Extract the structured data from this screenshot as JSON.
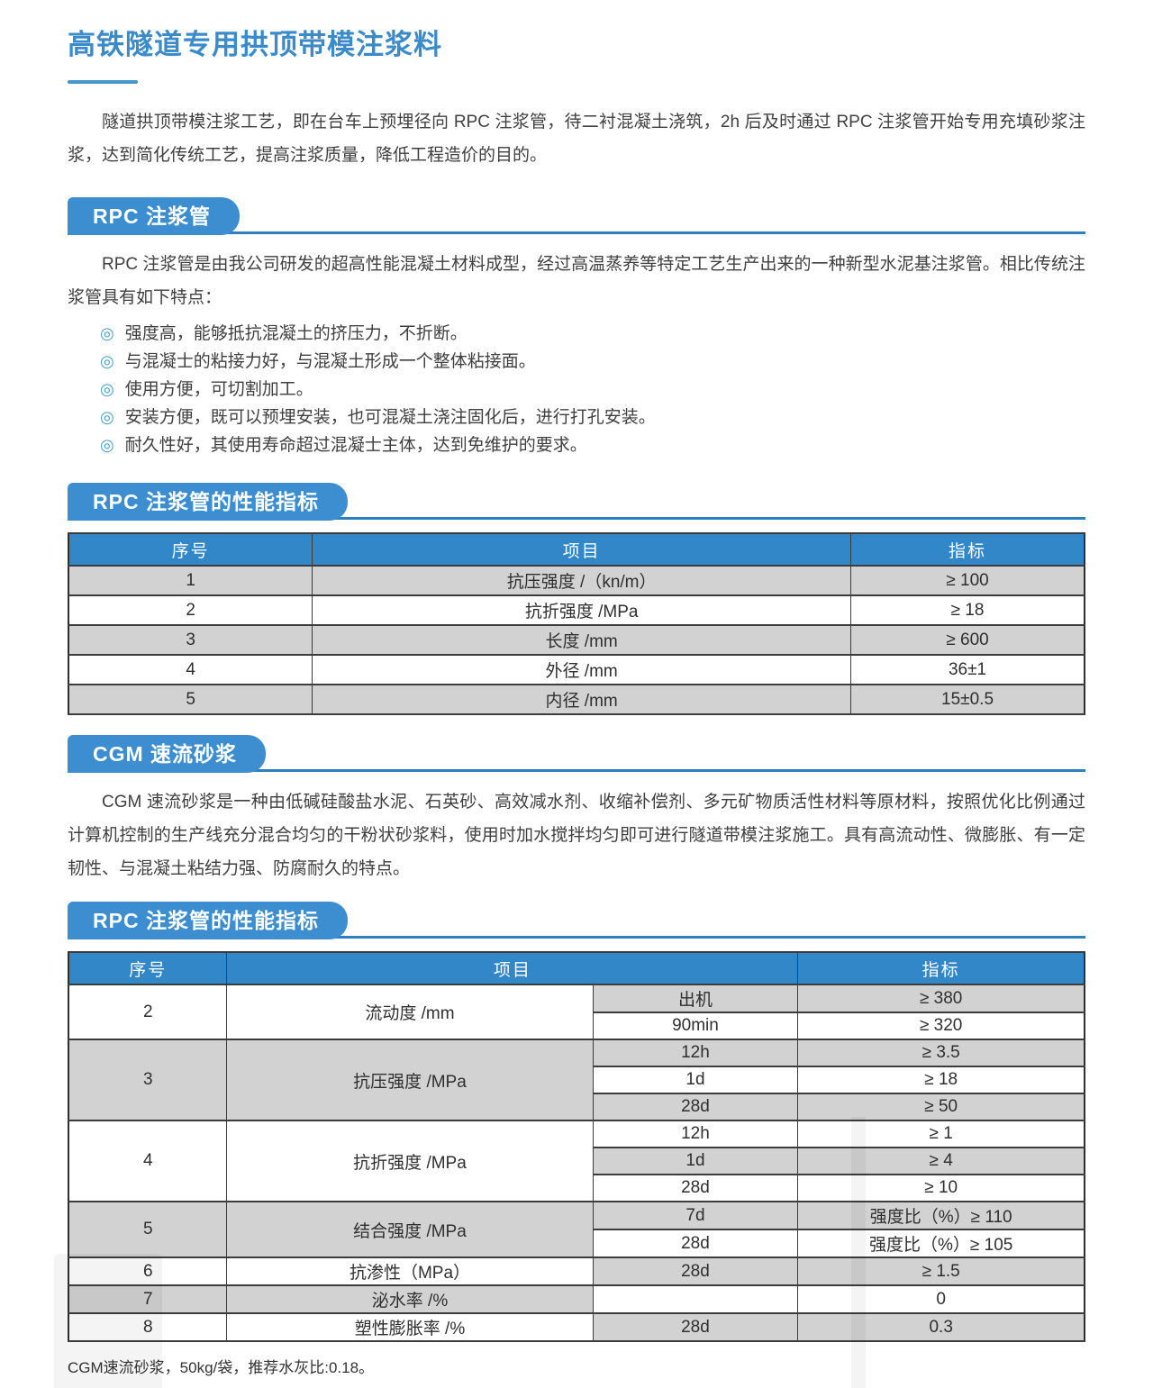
{
  "colors": {
    "accent_blue": "#3d8ed0",
    "table_header_blue": "#3287c9",
    "title_blue": "#3b8bca",
    "row_gray": "#d2d2d2",
    "banner_line_blue": "#2e7fbe"
  },
  "page": {
    "title": "高铁隧道专用拱顶带模注浆料",
    "intro": "隧道拱顶带模注浆工艺，即在台车上预埋径向 RPC 注浆管，待二衬混凝土浇筑，2h 后及时通过 RPC 注浆管开始专用充填砂浆注浆，达到简化传统工艺，提高注浆质量，降低工程造价的目的。"
  },
  "rpc_section": {
    "banner": "RPC 注浆管",
    "paragraph": "RPC 注浆管是由我公司研发的超高性能混凝土材料成型，经过高温蒸养等特定工艺生产出来的一种新型水泥基注浆管。相比传统注浆管具有如下特点：",
    "bullet_icon": "◎",
    "bullets": [
      "强度高，能够抵抗混凝土的挤压力，不折断。",
      "与混凝士的粘接力好，与混凝土形成一个整体粘接面。",
      "使用方便，可切割加工。",
      "安装方便，既可以预埋安装，也可混凝土浇注固化后，进行打孔安装。",
      "耐久性好，其使用寿命超过混凝士主体，达到免维护的要求。"
    ]
  },
  "rpc_table_section": {
    "banner": "RPC 注浆管的性能指标",
    "headers": [
      "序号",
      "项目",
      "指标"
    ],
    "rows": [
      {
        "no": "1",
        "item": "抗压强度 /（kn/m）",
        "value": "≥ 100",
        "shade": "gray"
      },
      {
        "no": "2",
        "item": "抗折强度 /MPa",
        "value": "≥ 18",
        "shade": "white"
      },
      {
        "no": "3",
        "item": "长度 /mm",
        "value": "≥ 600",
        "shade": "gray"
      },
      {
        "no": "4",
        "item": "外径 /mm",
        "value": "36±1",
        "shade": "white"
      },
      {
        "no": "5",
        "item": "内径 /mm",
        "value": "15±0.5",
        "shade": "gray"
      }
    ]
  },
  "cgm_section": {
    "banner": "CGM 速流砂浆",
    "paragraph": "CGM 速流砂浆是一种由低碱硅酸盐水泥、石英砂、高效减水剂、收缩补偿剂、多元矿物质活性材料等原材料，按照优化比例通过计算机控制的生产线充分混合均匀的干粉状砂浆料，使用时加水搅拌均匀即可进行隧道带模注浆施工。具有高流动性、微膨胀、有一定韧性、与混凝土粘结力强、防腐耐久的特点。"
  },
  "cgm_table_section": {
    "banner": "RPC 注浆管的性能指标",
    "headers": [
      "序号",
      "项目",
      "指标"
    ],
    "groups": [
      {
        "no": "2",
        "item": "流动度 /mm",
        "shade": "white",
        "subs": [
          {
            "cond": "出机",
            "value": "≥ 380",
            "shade": "gray"
          },
          {
            "cond": "90min",
            "value": "≥ 320",
            "shade": "white"
          }
        ]
      },
      {
        "no": "3",
        "item": "抗压强度 /MPa",
        "shade": "gray",
        "subs": [
          {
            "cond": "12h",
            "value": "≥ 3.5",
            "shade": "gray"
          },
          {
            "cond": "1d",
            "value": "≥ 18",
            "shade": "white"
          },
          {
            "cond": "28d",
            "value": "≥ 50",
            "shade": "gray"
          }
        ]
      },
      {
        "no": "4",
        "item": "抗折强度 /MPa",
        "shade": "white",
        "subs": [
          {
            "cond": "12h",
            "value": "≥ 1",
            "shade": "white"
          },
          {
            "cond": "1d",
            "value": "≥ 4",
            "shade": "gray"
          },
          {
            "cond": "28d",
            "value": "≥ 10",
            "shade": "white"
          }
        ]
      },
      {
        "no": "5",
        "item": "结合强度 /MPa",
        "shade": "gray",
        "subs": [
          {
            "cond": "7d",
            "value": "强度比（%）≥ 110",
            "shade": "gray"
          },
          {
            "cond": "28d",
            "value": "强度比（%）≥ 105",
            "shade": "white"
          }
        ]
      },
      {
        "no": "6",
        "item": "抗渗性（MPa）",
        "shade": "white",
        "subs": [
          {
            "cond": "28d",
            "value": "≥ 1.5",
            "shade": "gray"
          }
        ]
      },
      {
        "no": "7",
        "item": "泌水率 /%",
        "shade": "gray",
        "subs": [
          {
            "cond": "",
            "value": "0",
            "shade": "white"
          }
        ]
      },
      {
        "no": "8",
        "item": "塑性膨胀率 /%",
        "shade": "white",
        "subs": [
          {
            "cond": "28d",
            "value": "0.3",
            "shade": "gray"
          }
        ]
      }
    ],
    "footnote": "CGM速流砂浆，50kg/袋，推荐水灰比:0.18。"
  }
}
